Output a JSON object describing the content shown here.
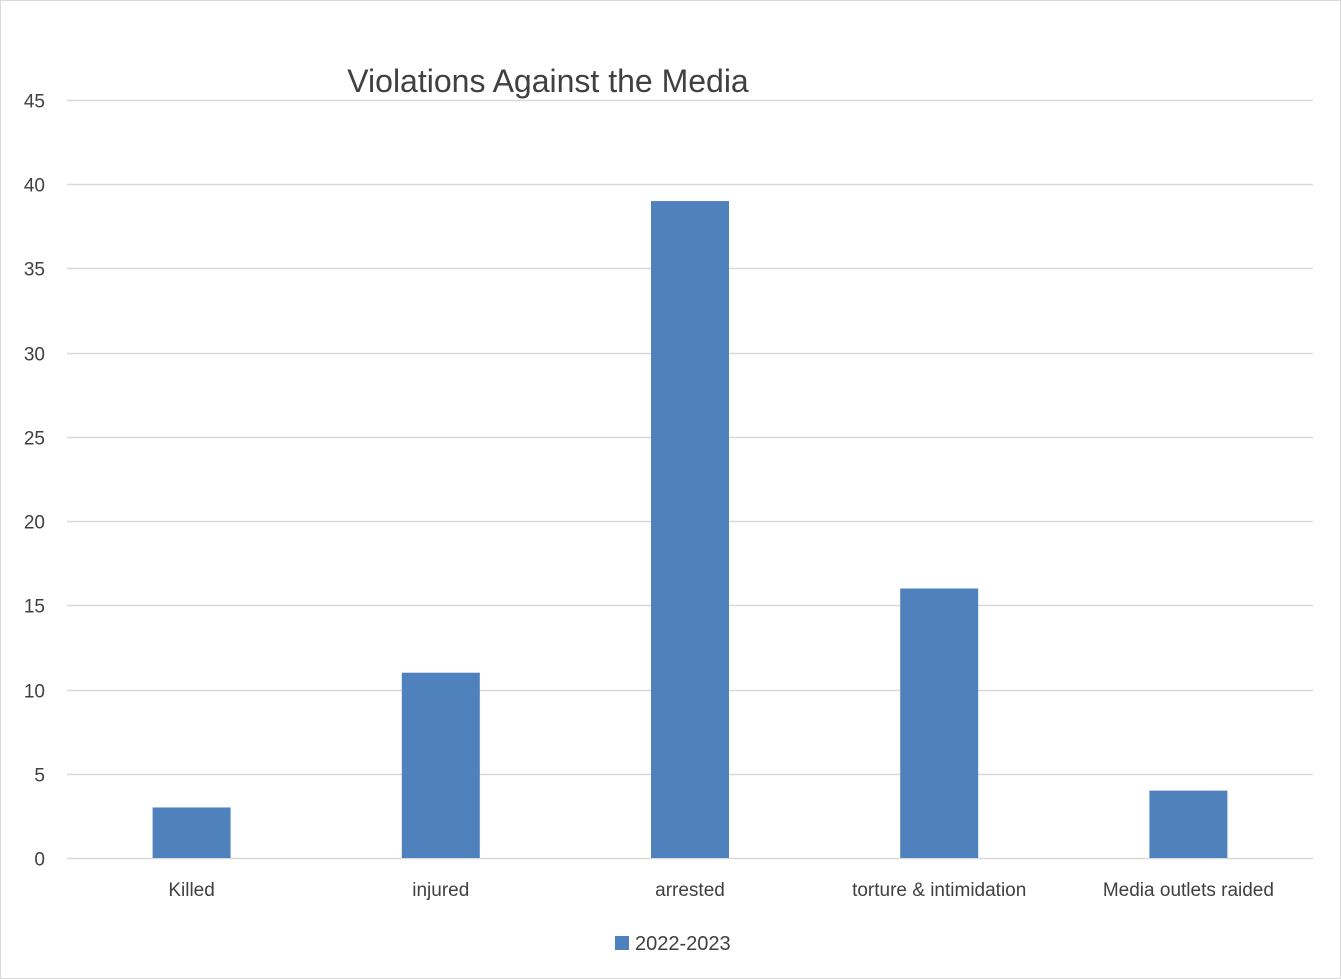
{
  "chart_data": {
    "type": "bar",
    "title": "Violations Against the Media",
    "xlabel": "",
    "ylabel": "",
    "categories": [
      "Killed",
      "injured",
      "arrested",
      "torture & intimidation",
      "Media outlets raided"
    ],
    "series": [
      {
        "name": "2022-2023",
        "values": [
          3,
          11,
          39,
          16,
          4
        ],
        "color": "#4f81bd"
      }
    ],
    "ylim": [
      0,
      45
    ],
    "yticks": [
      "0",
      "5",
      "10",
      "15",
      "20",
      "25",
      "30",
      "35",
      "40",
      "45"
    ],
    "grid": true,
    "legend_position": "bottom"
  },
  "colors": {
    "bar": "#4f81bd",
    "gridline": "#d9d9d9",
    "text": "#404040"
  }
}
